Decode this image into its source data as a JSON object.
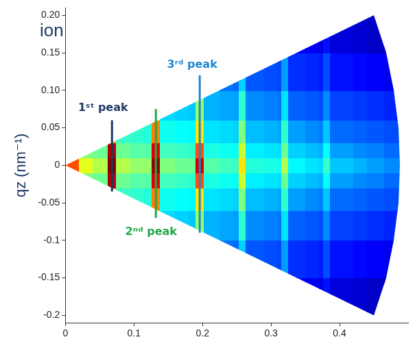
{
  "chart_data": {
    "type": "heatmap",
    "title": "ion",
    "y_label": "qz (nm⁻¹)",
    "xlim": [
      0,
      0.5
    ],
    "xticks": [
      0,
      0.1,
      0.2,
      0.3,
      0.4
    ],
    "ylim": [
      -0.21,
      0.21
    ],
    "yticks": [
      -0.2,
      -0.15,
      -0.1,
      -0.05,
      0,
      0.05,
      {
        "value": 0.1,
        "label": "0.10"
      },
      0.15,
      {
        "value": 0.2,
        "label": "0.20"
      }
    ],
    "grid": false,
    "heatmap": {
      "cell_range": [
        0,
        10
      ],
      "x_edges": [
        0,
        0.02,
        0.04,
        0.062,
        0.074,
        0.095,
        0.115,
        0.126,
        0.138,
        0.16,
        0.18,
        0.19,
        0.202,
        0.225,
        0.245,
        0.253,
        0.263,
        0.29,
        0.31,
        0.315,
        0.325,
        0.35,
        0.37,
        0.376,
        0.386,
        0.42,
        0.44,
        0.465,
        0.49
      ],
      "y_edges": [
        -0.2,
        -0.15,
        -0.1,
        -0.06,
        -0.03,
        -0.01,
        0.01,
        0.03,
        0.06,
        0.1,
        0.15,
        0.2
      ],
      "cells": [
        [
          null,
          null,
          null,
          null,
          null,
          null,
          null,
          null,
          null,
          null,
          null,
          null,
          null,
          null,
          null,
          null,
          null,
          null,
          null,
          null,
          1.2,
          1.1,
          1.0,
          1.4,
          0.9,
          0.8,
          0.7,
          0.6
        ],
        [
          null,
          null,
          null,
          null,
          null,
          null,
          null,
          null,
          null,
          null,
          null,
          null,
          null,
          2.4,
          2.3,
          3.3,
          2.1,
          2.0,
          1.9,
          2.8,
          1.7,
          1.6,
          1.5,
          2.0,
          1.4,
          1.3,
          1.2,
          1.1
        ],
        [
          null,
          null,
          null,
          null,
          null,
          null,
          null,
          5.5,
          3.4,
          3.3,
          3.2,
          5.2,
          3.0,
          2.9,
          2.8,
          4.2,
          2.6,
          2.5,
          2.4,
          3.5,
          2.2,
          2.1,
          2.0,
          2.6,
          1.9,
          1.8,
          1.7,
          1.6
        ],
        [
          null,
          null,
          null,
          7,
          4.3,
          4.2,
          4.1,
          7.5,
          3.9,
          3.8,
          3.7,
          6.5,
          3.5,
          3.4,
          3.3,
          5,
          3.1,
          3,
          2.9,
          4.2,
          2.8,
          2.6,
          2.5,
          3.2,
          2.3,
          2.2,
          2.1,
          2
        ],
        [
          null,
          5,
          4.8,
          9.5,
          4.8,
          4.6,
          4.6,
          9,
          4.4,
          4.3,
          4.2,
          8,
          4,
          3.9,
          3.8,
          5.8,
          3.6,
          3.5,
          3.4,
          4.8,
          3.3,
          3.1,
          3,
          3.8,
          2.8,
          2.6,
          2.5,
          2.3
        ],
        [
          8,
          6,
          5.5,
          10,
          5.5,
          5.2,
          5.2,
          9.8,
          5,
          4.8,
          4.8,
          9.2,
          4.6,
          4.4,
          4.3,
          6.5,
          4.1,
          4,
          3.9,
          5.5,
          3.7,
          3.5,
          3.4,
          4.3,
          3.2,
          3,
          2.8,
          2.6
        ],
        [
          null,
          5,
          4.8,
          9.5,
          4.8,
          4.6,
          4.6,
          9,
          4.4,
          4.3,
          4.2,
          8,
          4,
          3.9,
          3.8,
          5.8,
          3.6,
          3.5,
          3.4,
          4.8,
          3.3,
          3.1,
          3,
          3.8,
          2.8,
          2.6,
          2.5,
          2.3
        ],
        [
          null,
          null,
          null,
          7,
          4.3,
          4.2,
          4.1,
          7.5,
          3.9,
          3.8,
          3.7,
          6.5,
          3.5,
          3.4,
          3.3,
          5,
          3.1,
          3,
          2.9,
          4.2,
          2.8,
          2.6,
          2.5,
          3.2,
          2.3,
          2.2,
          2.1,
          2
        ],
        [
          null,
          null,
          null,
          null,
          null,
          null,
          null,
          5.5,
          3.4,
          3.3,
          3.2,
          5.2,
          3.0,
          2.9,
          2.8,
          4.2,
          2.6,
          2.5,
          2.4,
          3.5,
          2.2,
          2.1,
          2.0,
          2.6,
          1.9,
          1.8,
          1.7,
          1.6
        ],
        [
          null,
          null,
          null,
          null,
          null,
          null,
          null,
          null,
          null,
          null,
          null,
          null,
          null,
          2.4,
          2.3,
          3.3,
          2.1,
          2.0,
          1.9,
          2.8,
          1.7,
          1.6,
          1.5,
          2.0,
          1.4,
          1.3,
          1.2,
          1.1
        ],
        [
          null,
          null,
          null,
          null,
          null,
          null,
          null,
          null,
          null,
          null,
          null,
          null,
          null,
          null,
          null,
          null,
          null,
          null,
          null,
          null,
          1.2,
          1.1,
          1.0,
          1.4,
          0.9,
          0.8,
          0.7,
          0.6
        ]
      ]
    },
    "detector_mask": {
      "x": [
        0,
        0.45,
        0.468,
        0.479,
        0.486,
        0.488,
        0.486,
        0.479,
        0.468,
        0.45
      ],
      "y": [
        0,
        0.2,
        0.15,
        0.1,
        0.05,
        0,
        -0.05,
        -0.1,
        -0.15,
        -0.2
      ]
    },
    "annotations": [
      {
        "text": "1ˢᵗ peak",
        "x": 0.055,
        "y": 0.076,
        "color": "#1f3864",
        "line_x": 0.068,
        "line_y": [
          -0.035,
          0.06
        ]
      },
      {
        "text": "2ⁿᵈ peak",
        "x": 0.125,
        "y": -0.089,
        "color": "#22a84a",
        "line_x": 0.132,
        "line_y": [
          -0.07,
          0.075
        ]
      },
      {
        "text": "3ʳᵈ peak",
        "x": 0.185,
        "y": 0.134,
        "color": "#1e88d0",
        "line_x": 0.196,
        "line_y": [
          -0.09,
          0.12
        ]
      }
    ]
  }
}
